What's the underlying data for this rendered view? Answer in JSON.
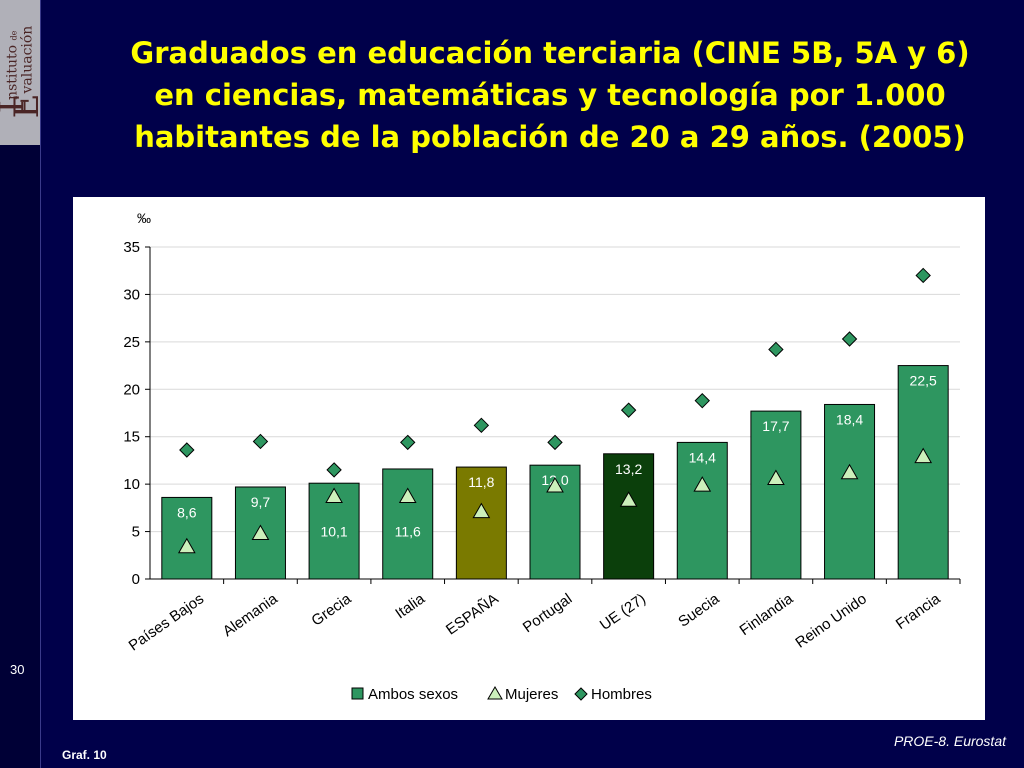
{
  "slide": {
    "title_lines": [
      "Graduados en educación terciaria (CINE 5B, 5A y 6)",
      "en ciencias, matemáticas y tecnología por 1.000",
      "habitantes de la población de 20 a 29 años. (2005)"
    ],
    "logo": {
      "big_i": "I",
      "word1": "nstituto",
      "de": "de",
      "big_e": "E",
      "word2": "valuación"
    },
    "page_number": "30",
    "graf_label": "Graf. 10",
    "source": "PROE-8. Eurostat"
  },
  "colors": {
    "background": "#00004a",
    "title": "#ffff00",
    "bar_default": "#2e9660",
    "bar_spain": "#7a7a00",
    "bar_eu": "#0b3f0b",
    "women_marker": "#ccf0bb",
    "men_marker": "#2e9660"
  },
  "chart_data": {
    "type": "bar",
    "ylabel": "‰",
    "ylim": [
      0,
      35
    ],
    "yticks": [
      0,
      5,
      10,
      15,
      20,
      25,
      30,
      35
    ],
    "grid": true,
    "legend_position": "bottom",
    "categories": [
      "Países Bajos",
      "Alemania",
      "Grecia",
      "Italia",
      "ESPAÑA",
      "Portugal",
      "UE (27)",
      "Suecia",
      "Finlandia",
      "Reino Unido",
      "Francia"
    ],
    "series": [
      {
        "name": "Ambos sexos",
        "kind": "bar",
        "values": [
          8.6,
          9.7,
          10.1,
          11.6,
          11.8,
          12.0,
          13.2,
          14.4,
          17.7,
          18.4,
          22.5
        ],
        "labels": [
          "8,6",
          "9,7",
          "10,1",
          "11,6",
          "11,8",
          "12,0",
          "13,2",
          "14,4",
          "17,7",
          "18,4",
          "22,5"
        ]
      },
      {
        "name": "Mujeres",
        "kind": "triangle",
        "values": [
          3.4,
          4.8,
          8.7,
          8.7,
          7.1,
          9.8,
          8.3,
          9.9,
          10.6,
          11.2,
          12.9
        ]
      },
      {
        "name": "Hombres",
        "kind": "diamond",
        "values": [
          13.6,
          14.5,
          11.5,
          14.4,
          16.2,
          14.4,
          17.8,
          18.8,
          24.2,
          25.3,
          32.0
        ]
      }
    ]
  }
}
